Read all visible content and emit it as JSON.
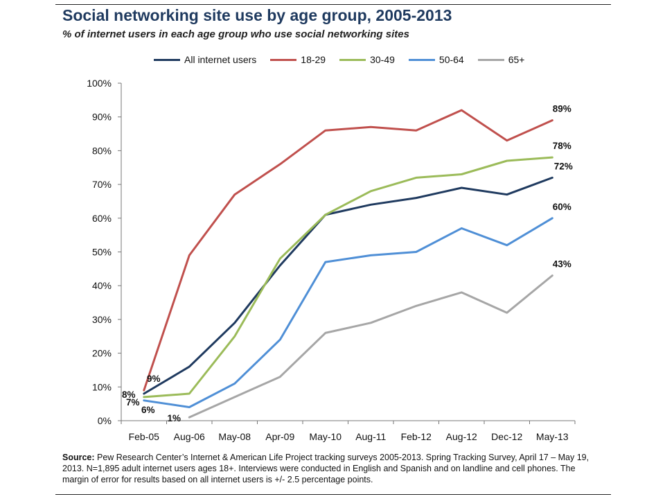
{
  "title": "Social networking site use by age group, 2005-2013",
  "subtitle": "% of internet users in each age group who use social networking sites",
  "source": {
    "label": "Source:",
    "text": " Pew Research Center’s Internet & American Life Project tracking surveys 2005-2013. Spring Tracking Survey, April 17 – May 19, 2013. N=1,895 adult internet users ages 18+. Interviews were conducted in English and Spanish and on landline and cell phones.  The margin of error for results based on all internet users is +/- 2.5 percentage points."
  },
  "chart_data": {
    "type": "line",
    "title": "Social networking site use by age group, 2005-2013",
    "subtitle": "% of internet users in each age group who use social networking sites",
    "xlabel": "",
    "ylabel": "",
    "ylim": [
      0,
      100
    ],
    "yticks": [
      0,
      10,
      20,
      30,
      40,
      50,
      60,
      70,
      80,
      90,
      100
    ],
    "ytick_labels": [
      "0%",
      "10%",
      "20%",
      "30%",
      "40%",
      "50%",
      "60%",
      "70%",
      "80%",
      "90%",
      "100%"
    ],
    "grid": false,
    "legend_position": "top",
    "categories": [
      "Feb-05",
      "Aug-06",
      "May-08",
      "Apr-09",
      "May-10",
      "Aug-11",
      "Feb-12",
      "Aug-12",
      "Dec-12",
      "May-13"
    ],
    "series": [
      {
        "name": "All internet users",
        "color": "#1f3a5f",
        "x": [
          0,
          1,
          2,
          3,
          4,
          5,
          6,
          7,
          8,
          9
        ],
        "values": [
          8,
          16,
          29,
          46,
          61,
          64,
          66,
          69,
          67,
          72
        ],
        "labels": [
          {
            "x": 0,
            "y": 8,
            "text": "8%",
            "pos": "left"
          },
          {
            "x": 9,
            "y": 72,
            "text": "72%",
            "pos": "right"
          }
        ]
      },
      {
        "name": "18-29",
        "color": "#c0504d",
        "x": [
          0,
          1,
          2,
          3,
          4,
          5,
          6,
          7,
          8,
          9
        ],
        "values": [
          9,
          49,
          67,
          76,
          86,
          87,
          86,
          92,
          83,
          89
        ],
        "labels": [
          {
            "x": 0,
            "y": 9,
            "text": "9%",
            "pos": "above"
          },
          {
            "x": 9,
            "y": 89,
            "text": "89%",
            "pos": "above"
          }
        ]
      },
      {
        "name": "30-49",
        "color": "#9bbb59",
        "x": [
          0,
          1,
          2,
          3,
          4,
          5,
          6,
          7,
          8,
          9
        ],
        "values": [
          7,
          8,
          25,
          48,
          61,
          68,
          72,
          73,
          77,
          78
        ],
        "labels": [
          {
            "x": 0,
            "y": 7,
            "text": "7%",
            "pos": "below-left"
          },
          {
            "x": 9,
            "y": 78,
            "text": "78%",
            "pos": "above"
          }
        ]
      },
      {
        "name": "50-64",
        "color": "#4f8fd6",
        "x": [
          0,
          1,
          2,
          3,
          4,
          5,
          6,
          7,
          8,
          9
        ],
        "values": [
          6,
          4,
          11,
          24,
          47,
          49,
          50,
          57,
          52,
          60
        ],
        "labels": [
          {
            "x": 0,
            "y": 6,
            "text": "6%",
            "pos": "below"
          },
          {
            "x": 9,
            "y": 60,
            "text": "60%",
            "pos": "above"
          }
        ]
      },
      {
        "name": "65+",
        "color": "#a6a6a6",
        "x": [
          1,
          2,
          3,
          4,
          5,
          6,
          7,
          8,
          9
        ],
        "values": [
          1,
          7,
          13,
          26,
          29,
          34,
          38,
          32,
          43
        ],
        "labels": [
          {
            "x": 1,
            "y": 1,
            "text": "1%",
            "pos": "left"
          },
          {
            "x": 9,
            "y": 43,
            "text": "43%",
            "pos": "above"
          }
        ]
      }
    ]
  }
}
